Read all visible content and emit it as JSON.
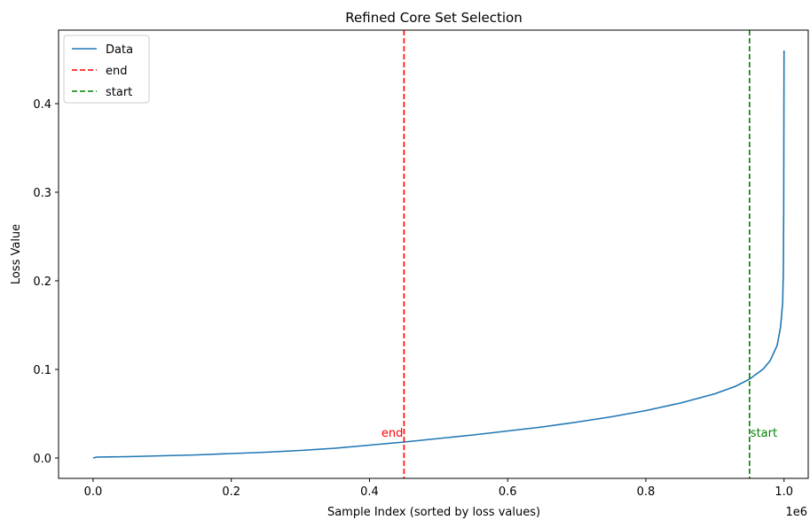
{
  "chart_data": {
    "type": "line",
    "title": "Refined Core Set Selection",
    "xlabel": "Sample Index (sorted by loss values)",
    "ylabel": "Loss Value",
    "x_offset_label": "1e6",
    "xlim": [
      -0.05,
      1.035
    ],
    "ylim": [
      -0.023,
      0.483
    ],
    "xticks": [
      0.0,
      0.2,
      0.4,
      0.6,
      0.8,
      1.0
    ],
    "xtick_labels": [
      "0.0",
      "0.2",
      "0.4",
      "0.6",
      "0.8",
      "1.0"
    ],
    "yticks": [
      0.0,
      0.1,
      0.2,
      0.3,
      0.4
    ],
    "ytick_labels": [
      "0.0",
      "0.1",
      "0.2",
      "0.3",
      "0.4"
    ],
    "grid": false,
    "legend_position": "top-left",
    "series": [
      {
        "name": "Data",
        "color": "#1f77b4",
        "style": "solid",
        "points": [
          [
            0.0,
            0.0
          ],
          [
            0.005,
            0.001
          ],
          [
            0.05,
            0.0015
          ],
          [
            0.1,
            0.0025
          ],
          [
            0.15,
            0.0035
          ],
          [
            0.2,
            0.005
          ],
          [
            0.25,
            0.0065
          ],
          [
            0.3,
            0.0085
          ],
          [
            0.35,
            0.011
          ],
          [
            0.4,
            0.0145
          ],
          [
            0.45,
            0.018
          ],
          [
            0.5,
            0.022
          ],
          [
            0.55,
            0.026
          ],
          [
            0.6,
            0.0305
          ],
          [
            0.65,
            0.035
          ],
          [
            0.7,
            0.0405
          ],
          [
            0.75,
            0.0465
          ],
          [
            0.8,
            0.0535
          ],
          [
            0.85,
            0.062
          ],
          [
            0.9,
            0.0725
          ],
          [
            0.93,
            0.081
          ],
          [
            0.95,
            0.089
          ],
          [
            0.97,
            0.1005
          ],
          [
            0.98,
            0.11
          ],
          [
            0.99,
            0.127
          ],
          [
            0.995,
            0.148
          ],
          [
            0.998,
            0.175
          ],
          [
            0.999,
            0.21
          ],
          [
            0.9995,
            0.28
          ],
          [
            1.0,
            0.46
          ]
        ]
      }
    ],
    "vlines": [
      {
        "name": "end",
        "x": 0.45,
        "color": "#ff0000",
        "style": "dashed",
        "annotation": "end",
        "annotation_y": 0.022,
        "annotation_align": "right"
      },
      {
        "name": "start",
        "x": 0.95,
        "color": "#008000",
        "style": "dashed",
        "annotation": "start",
        "annotation_y": 0.022,
        "annotation_align": "left"
      }
    ],
    "legend": [
      {
        "label": "Data",
        "color": "#1f77b4",
        "style": "solid"
      },
      {
        "label": "end",
        "color": "#ff0000",
        "style": "dashed"
      },
      {
        "label": "start",
        "color": "#008000",
        "style": "dashed"
      }
    ]
  }
}
